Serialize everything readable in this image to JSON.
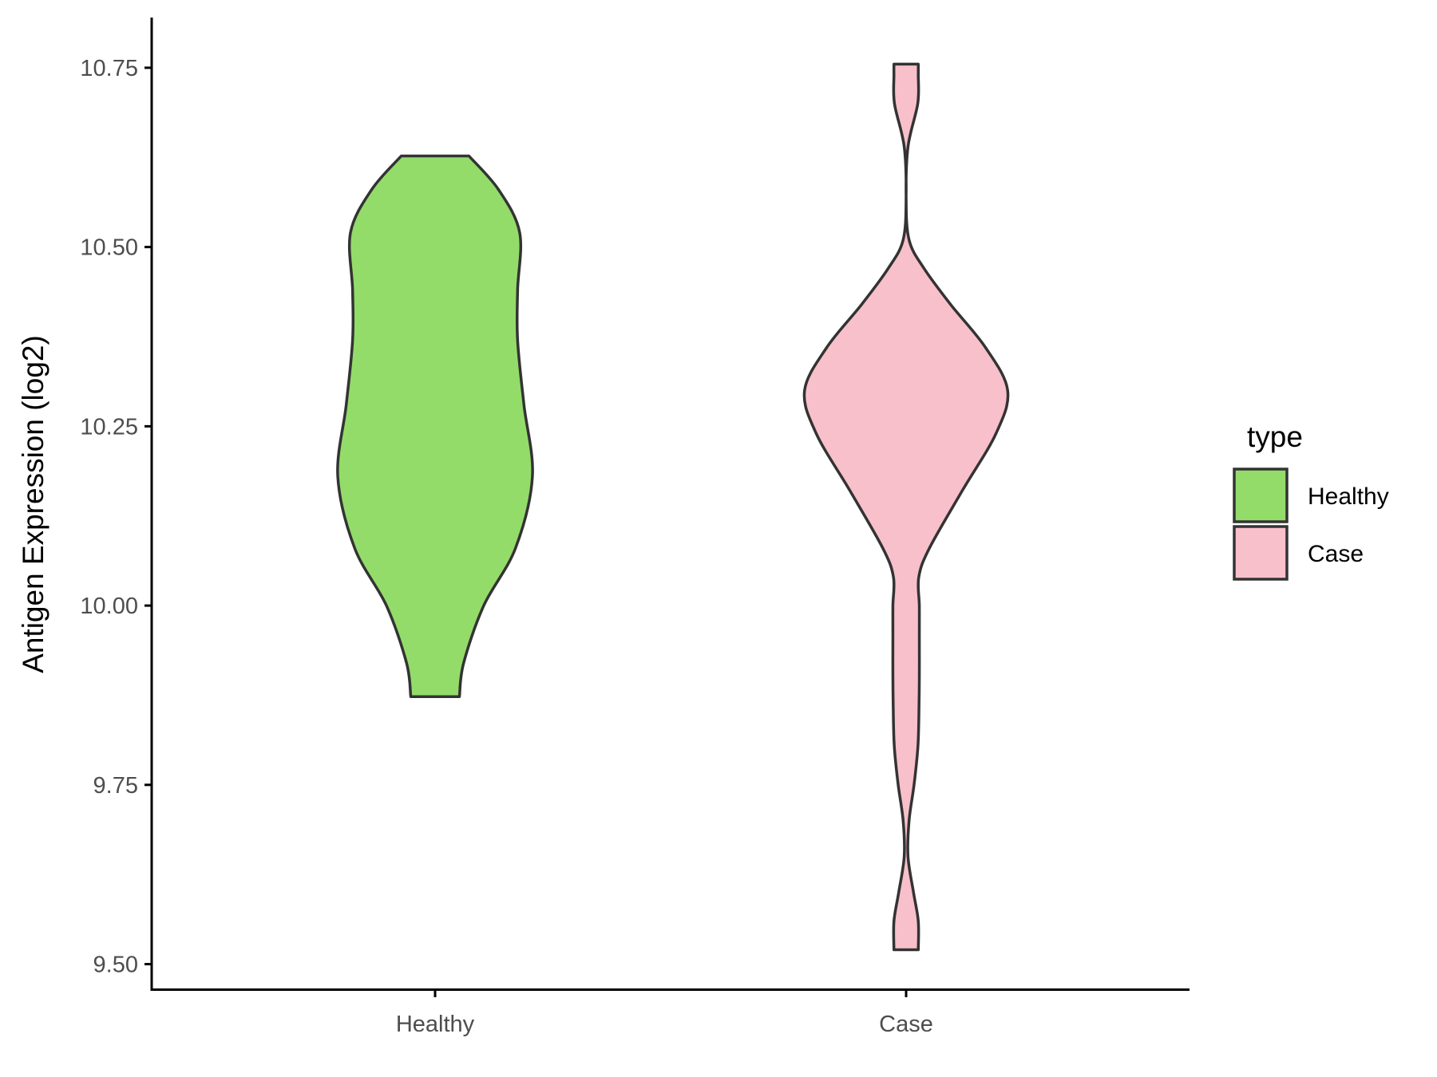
{
  "chart_data": {
    "type": "violin",
    "ylabel": "Antigen Expression (log2)",
    "xlabel": "",
    "categories": [
      "Healthy",
      "Case"
    ],
    "ylim": [
      9.465,
      10.82
    ],
    "yticks": [
      9.5,
      9.75,
      10.0,
      10.25,
      10.5,
      10.75
    ],
    "ytick_labels": [
      "9.50",
      "9.75",
      "10.00",
      "10.25",
      "10.50",
      "10.75"
    ],
    "grid": false,
    "legend": {
      "title": "type",
      "position": "right",
      "entries": [
        {
          "label": "Healthy",
          "color": "#93dc6a"
        },
        {
          "label": "Case",
          "color": "#f8c0cb"
        }
      ]
    },
    "series": [
      {
        "category": "Healthy",
        "color": "#93dc6a",
        "min": 9.873,
        "max": 10.627,
        "density_profile": [
          [
            9.873,
            0.23
          ],
          [
            9.92,
            0.27
          ],
          [
            10.0,
            0.46
          ],
          [
            10.08,
            0.76
          ],
          [
            10.18,
            0.92
          ],
          [
            10.28,
            0.84
          ],
          [
            10.37,
            0.78
          ],
          [
            10.44,
            0.78
          ],
          [
            10.52,
            0.8
          ],
          [
            10.58,
            0.6
          ],
          [
            10.627,
            0.32
          ]
        ]
      },
      {
        "category": "Case",
        "color": "#f8c0cb",
        "min": 9.52,
        "max": 10.755,
        "density_profile": [
          [
            9.52,
            0.115
          ],
          [
            9.56,
            0.115
          ],
          [
            9.6,
            0.07
          ],
          [
            9.65,
            0.018
          ],
          [
            9.7,
            0.028
          ],
          [
            9.75,
            0.075
          ],
          [
            9.8,
            0.11
          ],
          [
            9.84,
            0.12
          ],
          [
            9.9,
            0.125
          ],
          [
            9.96,
            0.125
          ],
          [
            10.0,
            0.125
          ],
          [
            10.04,
            0.12
          ],
          [
            10.08,
            0.22
          ],
          [
            10.16,
            0.53
          ],
          [
            10.24,
            0.85
          ],
          [
            10.3,
            0.96
          ],
          [
            10.36,
            0.75
          ],
          [
            10.42,
            0.42
          ],
          [
            10.47,
            0.17
          ],
          [
            10.51,
            0.028
          ],
          [
            10.57,
            0.0
          ],
          [
            10.64,
            0.018
          ],
          [
            10.7,
            0.11
          ],
          [
            10.74,
            0.115
          ],
          [
            10.755,
            0.115
          ]
        ]
      }
    ]
  }
}
